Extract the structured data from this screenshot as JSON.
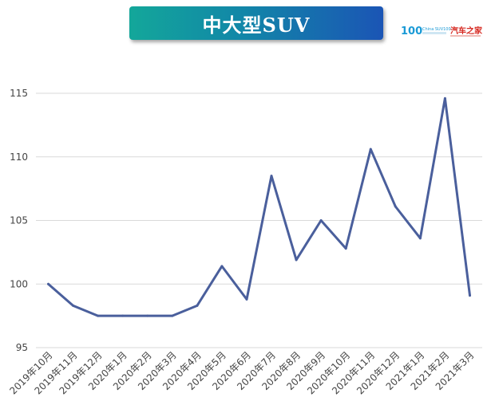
{
  "title": "中大型SUV",
  "logo": {
    "left_text": "100",
    "left_sub": "China SUV100",
    "right_text": "汽车之家",
    "icon": "autohome-logo-icon"
  },
  "colors": {
    "line": "#4a5f9c",
    "grid": "#d9d9d9",
    "banner_start": "#13a79a",
    "banner_end": "#1b55b5"
  },
  "chart_data": {
    "type": "line",
    "categories": [
      "2019年10月",
      "2019年11月",
      "2019年12月",
      "2020年1月",
      "2020年2月",
      "2020年3月",
      "2020年4月",
      "2020年5月",
      "2020年6月",
      "2020年7月",
      "2020年8月",
      "2020年9月",
      "2020年10月",
      "2020年11月",
      "2020年12月",
      "2021年1月",
      "2021年2月",
      "2021年3月"
    ],
    "series": [
      {
        "values": [
          100.0,
          98.3,
          97.5,
          97.5,
          97.5,
          97.5,
          98.3,
          101.4,
          98.8,
          108.5,
          101.9,
          105.0,
          102.8,
          110.6,
          106.1,
          103.6,
          114.6,
          99.1
        ]
      }
    ],
    "ylim": [
      95,
      115
    ],
    "yticks": [
      95,
      100,
      105,
      110,
      115
    ],
    "grid": true,
    "legend": "none"
  }
}
